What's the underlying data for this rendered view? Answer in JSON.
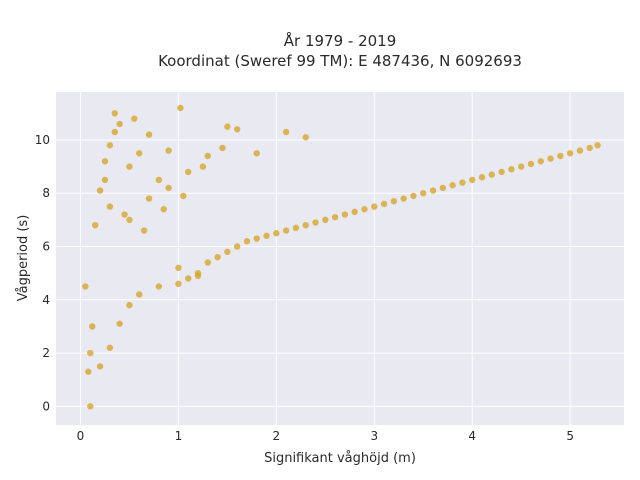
{
  "chart_data": {
    "type": "scatter",
    "title": [
      "År 1979 - 2019",
      "Koordinat (Sweref 99 TM): E 487436, N 6092693"
    ],
    "xlabel": "Signifikant våghöjd (m)",
    "ylabel": "Vågperiod (s)",
    "xlim": [
      -0.25,
      5.55
    ],
    "ylim": [
      -0.7,
      11.8
    ],
    "xticks": [
      0,
      1,
      2,
      3,
      4,
      5
    ],
    "yticks": [
      0,
      2,
      4,
      6,
      8,
      10
    ],
    "grid": true,
    "legend": "none",
    "colors": {
      "marker": "#D4A21F",
      "plot_bg": "#E9E9F1",
      "grid": "#FFFFFF"
    },
    "series": [
      {
        "x": [
          0.08,
          0.1,
          0.12,
          0.05,
          0.15,
          0.2,
          0.25,
          0.3,
          0.35,
          0.4,
          0.5,
          0.6,
          0.7,
          0.8,
          0.9,
          1.0,
          1.1,
          1.2,
          1.3,
          1.4,
          1.5,
          1.6,
          1.7,
          1.8,
          1.9,
          2.0,
          2.1,
          2.2,
          2.3,
          2.4,
          2.5,
          2.6,
          2.7,
          2.8,
          2.9,
          3.0,
          3.1,
          3.2,
          3.3,
          3.4,
          3.5,
          3.6,
          3.7,
          3.8,
          3.9,
          4.0,
          4.1,
          4.2,
          4.3,
          4.4,
          4.5,
          4.6,
          4.7,
          4.8,
          4.9,
          5.0,
          5.1,
          5.2,
          5.28,
          0.1,
          0.2,
          0.3,
          0.4,
          0.5,
          0.6,
          0.8,
          1.0,
          1.2,
          0.3,
          0.5,
          0.7,
          0.9,
          1.1,
          1.3,
          0.25,
          0.45,
          0.65,
          0.85,
          1.05,
          1.25,
          1.45,
          1.6,
          1.8,
          2.1,
          2.3,
          0.35,
          0.55,
          1.02,
          1.5
        ],
        "y": [
          1.3,
          2.0,
          3.0,
          4.5,
          6.8,
          8.1,
          9.2,
          9.8,
          10.3,
          10.6,
          9.0,
          9.5,
          10.2,
          8.5,
          9.6,
          5.2,
          4.8,
          5.0,
          5.4,
          5.6,
          5.8,
          6.0,
          6.2,
          6.3,
          6.4,
          6.5,
          6.6,
          6.7,
          6.8,
          6.9,
          7.0,
          7.1,
          7.2,
          7.3,
          7.4,
          7.5,
          7.6,
          7.7,
          7.8,
          7.9,
          8.0,
          8.1,
          8.2,
          8.3,
          8.4,
          8.5,
          8.6,
          8.7,
          8.8,
          8.9,
          9.0,
          9.1,
          9.2,
          9.3,
          9.4,
          9.5,
          9.6,
          9.7,
          9.8,
          0.0,
          1.5,
          2.2,
          3.1,
          3.8,
          4.2,
          4.5,
          4.6,
          4.9,
          7.5,
          7.0,
          7.8,
          8.2,
          8.8,
          9.4,
          8.5,
          7.2,
          6.6,
          7.4,
          7.9,
          9.0,
          9.7,
          10.4,
          9.5,
          10.3,
          10.1,
          11.0,
          10.8,
          11.2,
          10.5
        ]
      }
    ]
  }
}
